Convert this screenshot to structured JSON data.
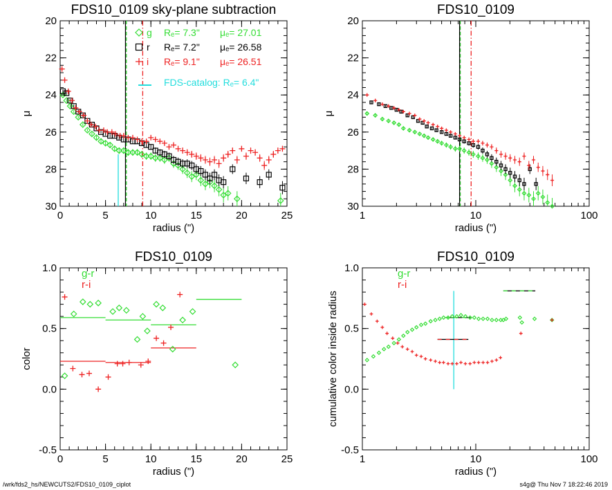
{
  "footer": {
    "left": "/wrk/fds2_hs/NEWCUTS2/FDS10_0109_ciplot",
    "right": "s4g@  Thu Nov  7 18:22:46 2019"
  },
  "colors": {
    "g": "#33dd33",
    "r": "#000000",
    "i": "#ee2222",
    "fds": "#22dddd"
  },
  "chart_data": [
    {
      "type": "scatter",
      "title": "FDS10_0109 sky-plane subtraction",
      "xlabel": "radius (\")",
      "ylabel": "μ",
      "xlim": [
        0,
        25
      ],
      "ylim": [
        30,
        20
      ],
      "xscale": "linear",
      "xticks": [
        "0",
        "5",
        "10",
        "15",
        "20",
        "25"
      ],
      "yticks": [
        "20",
        "22",
        "24",
        "26",
        "28",
        "30"
      ],
      "legend": [
        {
          "band": "g",
          "Re": "Rₑ=  7.3\"",
          "mu": "μₑ= 27.01",
          "color": "#33dd33",
          "marker": "diamond"
        },
        {
          "band": "r",
          "Re": "Rₑ=  7.2\"",
          "mu": "μₑ= 26.58",
          "color": "#000000",
          "marker": "square"
        },
        {
          "band": "i",
          "Re": "Rₑ=  9.1\"",
          "mu": "μₑ= 26.51",
          "color": "#ee2222",
          "marker": "plus"
        }
      ],
      "fds_catalog": {
        "label": "FDS-catalog: Rₑ=   6.4\"",
        "Re": 6.4,
        "color": "#22dddd"
      },
      "vlines": [
        {
          "x": 7.3,
          "color": "#33dd33",
          "style": "dashed"
        },
        {
          "x": 7.2,
          "color": "#000000",
          "style": "solid"
        },
        {
          "x": 9.1,
          "color": "#ee2222",
          "style": "dashdot"
        },
        {
          "x": 6.4,
          "color": "#22dddd",
          "style": "solid",
          "from": 30,
          "to": 27.2
        }
      ],
      "series": [
        {
          "name": "g",
          "color": "#33dd33",
          "marker": "diamond",
          "x": [
            0.3,
            0.7,
            1.1,
            1.5,
            2.0,
            2.5,
            3.0,
            3.5,
            4.0,
            4.5,
            5.0,
            5.5,
            6.0,
            6.5,
            7.0,
            7.5,
            8.0,
            8.5,
            9.0,
            9.5,
            10.0,
            10.5,
            11.0,
            11.5,
            12.0,
            12.5,
            13.0,
            13.5,
            14.0,
            14.5,
            15.0,
            15.5,
            16.0,
            16.5,
            17.0,
            17.5,
            18.0,
            18.5,
            19.5,
            24.3
          ],
          "y": [
            24.0,
            24.3,
            24.6,
            24.9,
            25.2,
            25.6,
            25.9,
            26.1,
            26.3,
            26.5,
            26.6,
            26.7,
            26.9,
            27.0,
            27.0,
            27.1,
            27.1,
            27.1,
            27.2,
            27.3,
            27.3,
            27.4,
            27.4,
            27.5,
            27.4,
            27.7,
            27.8,
            28.0,
            28.2,
            28.4,
            28.3,
            28.6,
            28.8,
            28.7,
            28.9,
            29.1,
            29.4,
            29.3,
            29.6,
            29.7
          ]
        },
        {
          "name": "r",
          "color": "#000000",
          "marker": "square",
          "x": [
            0.3,
            0.7,
            1.1,
            1.5,
            2.0,
            2.5,
            3.0,
            3.5,
            4.0,
            4.5,
            5.0,
            5.5,
            6.0,
            6.5,
            7.0,
            7.5,
            8.0,
            8.5,
            9.0,
            9.5,
            10.0,
            10.5,
            11.0,
            11.5,
            12.0,
            12.5,
            13.0,
            13.5,
            14.0,
            14.5,
            15.0,
            15.5,
            16.0,
            16.5,
            17.0,
            17.5,
            18.0,
            19.0,
            20.5,
            22.0,
            23.0,
            24.5
          ],
          "y": [
            23.8,
            23.9,
            24.3,
            24.6,
            24.9,
            25.1,
            25.4,
            25.6,
            25.8,
            26.0,
            26.1,
            26.2,
            26.2,
            26.3,
            26.4,
            26.4,
            26.5,
            26.5,
            26.6,
            26.7,
            26.8,
            27.0,
            27.1,
            27.2,
            27.3,
            27.5,
            27.6,
            27.7,
            27.7,
            27.8,
            28.0,
            28.1,
            28.3,
            28.5,
            28.3,
            28.6,
            28.7,
            28.0,
            28.5,
            28.7,
            28.3,
            29.0
          ]
        },
        {
          "name": "i",
          "color": "#ee2222",
          "marker": "plus",
          "x": [
            0.2,
            0.5,
            0.9,
            1.3,
            1.7,
            2.1,
            2.6,
            3.0,
            3.4,
            3.9,
            4.3,
            4.8,
            5.2,
            5.7,
            6.1,
            6.6,
            7.0,
            7.5,
            8.0,
            8.5,
            9.0,
            9.5,
            10.0,
            10.5,
            11.0,
            11.5,
            12.0,
            12.5,
            13.0,
            13.5,
            14.0,
            14.5,
            15.0,
            15.5,
            16.0,
            16.5,
            17.0,
            17.5,
            18.0,
            18.5,
            19.0,
            19.5,
            20.0,
            20.5,
            21.0,
            21.5,
            22.0,
            22.5,
            23.0,
            23.5,
            24.0,
            24.5
          ],
          "y": [
            22.6,
            23.2,
            23.8,
            24.3,
            24.7,
            24.9,
            25.1,
            25.4,
            25.6,
            25.7,
            25.9,
            25.9,
            26.0,
            26.0,
            26.1,
            26.2,
            26.2,
            26.3,
            26.3,
            26.4,
            26.5,
            26.5,
            26.3,
            26.4,
            26.5,
            26.6,
            26.8,
            26.7,
            26.9,
            27.0,
            27.1,
            27.2,
            27.3,
            27.4,
            27.5,
            27.6,
            27.5,
            27.7,
            27.4,
            27.2,
            27.0,
            27.5,
            26.9,
            27.3,
            27.0,
            27.1,
            27.4,
            27.8,
            27.5,
            27.2,
            27.0,
            26.9
          ]
        }
      ]
    },
    {
      "type": "scatter",
      "title": "FDS10_0109",
      "xlabel": "radius (\")",
      "ylabel": "μ",
      "xlim": [
        1,
        100
      ],
      "ylim": [
        30,
        20
      ],
      "xscale": "log",
      "xticks": [
        "1",
        "10",
        "100"
      ],
      "yticks": [
        "20",
        "22",
        "24",
        "26",
        "28",
        "30"
      ],
      "vlines": [
        {
          "x": 7.3,
          "color": "#33dd33",
          "style": "dashed"
        },
        {
          "x": 7.2,
          "color": "#000000",
          "style": "solid"
        },
        {
          "x": 9.1,
          "color": "#ee2222",
          "style": "dashdot"
        }
      ],
      "series": [
        {
          "name": "g",
          "color": "#33dd33",
          "marker": "diamond",
          "x": [
            1.1,
            1.3,
            1.5,
            1.7,
            1.9,
            2.1,
            2.3,
            2.6,
            2.9,
            3.2,
            3.5,
            3.8,
            4.2,
            4.6,
            5.0,
            5.5,
            6.0,
            6.6,
            7.2,
            7.9,
            8.7,
            9.5,
            10.5,
            11.5,
            12.6,
            13.8,
            15.2,
            16.7,
            18.3,
            20.1,
            22.1,
            24.3,
            26.7,
            29.4,
            32.3,
            35.5,
            39.0,
            42.9,
            47.2
          ],
          "y": [
            25.0,
            25.1,
            25.3,
            25.4,
            25.5,
            25.6,
            25.8,
            25.9,
            26.0,
            26.1,
            26.2,
            26.3,
            26.4,
            26.5,
            26.6,
            26.7,
            26.8,
            26.9,
            26.9,
            27.0,
            27.1,
            27.2,
            27.3,
            27.4,
            27.5,
            27.7,
            27.9,
            28.1,
            28.3,
            28.6,
            28.9,
            29.1,
            29.3,
            29.4,
            29.6,
            29.3,
            29.5,
            29.8,
            30.0
          ]
        },
        {
          "name": "r",
          "color": "#000000",
          "marker": "square",
          "x": [
            1.2,
            1.4,
            1.6,
            1.8,
            2.0,
            2.2,
            2.5,
            2.8,
            3.1,
            3.4,
            3.7,
            4.1,
            4.5,
            5.0,
            5.5,
            6.0,
            6.6,
            7.2,
            7.9,
            8.7,
            9.5,
            10.5,
            11.5,
            12.6,
            13.8,
            15.2,
            16.7,
            18.3,
            20.1,
            22.1,
            24.3,
            26.7,
            30.0,
            34.0
          ],
          "y": [
            24.4,
            24.5,
            24.6,
            24.7,
            24.8,
            24.9,
            25.1,
            25.2,
            25.4,
            25.5,
            25.7,
            25.8,
            25.9,
            26.0,
            26.1,
            26.2,
            26.3,
            26.4,
            26.5,
            26.6,
            26.7,
            26.8,
            27.0,
            27.2,
            27.4,
            27.6,
            27.8,
            28.0,
            28.2,
            28.4,
            28.6,
            28.8,
            28.0,
            28.8
          ]
        },
        {
          "name": "i",
          "color": "#ee2222",
          "marker": "plus",
          "x": [
            1.1,
            1.3,
            1.5,
            1.7,
            1.9,
            2.1,
            2.3,
            2.6,
            2.9,
            3.2,
            3.5,
            3.8,
            4.2,
            4.6,
            5.0,
            5.5,
            6.0,
            6.6,
            7.2,
            7.9,
            8.7,
            9.5,
            10.5,
            11.5,
            12.6,
            13.8,
            15.2,
            16.7,
            18.3,
            20.1,
            22.1,
            24.3,
            26.7,
            29.4,
            32.3,
            35.5,
            39.0,
            42.9,
            47.2
          ],
          "y": [
            24.0,
            24.3,
            24.5,
            24.6,
            24.7,
            24.8,
            24.9,
            25.0,
            25.1,
            25.3,
            25.4,
            25.5,
            25.6,
            25.7,
            25.8,
            25.9,
            26.0,
            26.1,
            26.2,
            26.3,
            26.4,
            26.5,
            26.5,
            26.6,
            26.7,
            26.8,
            27.0,
            27.2,
            27.3,
            27.4,
            27.5,
            27.6,
            27.3,
            27.8,
            27.5,
            27.9,
            28.1,
            28.3,
            28.6
          ]
        }
      ]
    },
    {
      "type": "scatter",
      "title": "FDS10_0109",
      "xlabel": "radius (\")",
      "ylabel": "color",
      "xlim": [
        0,
        25
      ],
      "ylim": [
        -0.5,
        1.0
      ],
      "xscale": "linear",
      "xticks": [
        "0",
        "5",
        "10",
        "15",
        "20",
        "25"
      ],
      "yticks": [
        "-0.5",
        "0.0",
        "0.5",
        "1.0"
      ],
      "legend": [
        {
          "label": "g-r",
          "color": "#33dd33"
        },
        {
          "label": "r-i",
          "color": "#ee2222"
        }
      ],
      "series": [
        {
          "name": "g-r",
          "color": "#33dd33",
          "marker": "diamond",
          "x": [
            0.5,
            1.5,
            2.5,
            3.3,
            4.2,
            5.8,
            6.5,
            7.3,
            8.5,
            9.1,
            9.6,
            10.6,
            11.3,
            12.4,
            13.5,
            14.6,
            19.3
          ],
          "y": [
            0.11,
            0.62,
            0.72,
            0.7,
            0.71,
            0.64,
            0.67,
            0.65,
            0.41,
            0.6,
            0.48,
            0.7,
            0.67,
            0.33,
            0.57,
            0.64,
            0.2
          ]
        },
        {
          "name": "r-i",
          "color": "#ee2222",
          "marker": "plus",
          "x": [
            0.5,
            1.4,
            2.4,
            3.2,
            4.2,
            5.3,
            6.3,
            6.9,
            7.6,
            8.9,
            9.7,
            10.6,
            11.4,
            12.2,
            13.2
          ],
          "y": [
            0.76,
            0.17,
            0.12,
            0.13,
            0.0,
            0.1,
            0.21,
            0.21,
            0.22,
            0.2,
            0.23,
            0.42,
            0.38,
            0.51,
            0.78
          ]
        }
      ],
      "segments": [
        {
          "color": "#33dd33",
          "x": [
            0,
            5
          ],
          "y": 0.59
        },
        {
          "color": "#33dd33",
          "x": [
            5,
            10
          ],
          "y": 0.57
        },
        {
          "color": "#33dd33",
          "x": [
            10,
            15
          ],
          "y": 0.53
        },
        {
          "color": "#33dd33",
          "x": [
            15,
            20
          ],
          "y": 0.74
        },
        {
          "color": "#ee2222",
          "x": [
            0,
            5
          ],
          "y": 0.23
        },
        {
          "color": "#ee2222",
          "x": [
            5,
            10
          ],
          "y": 0.22
        },
        {
          "color": "#ee2222",
          "x": [
            10,
            15
          ],
          "y": 0.34
        }
      ]
    },
    {
      "type": "scatter",
      "title": "FDS10_0109",
      "xlabel": "radius (\")",
      "ylabel": "cumulative color inside radius",
      "xlim": [
        1,
        100
      ],
      "ylim": [
        -0.5,
        1.0
      ],
      "xscale": "log",
      "xticks": [
        "1",
        "10",
        "100"
      ],
      "yticks": [
        "-0.5",
        "0.0",
        "0.5",
        "1.0"
      ],
      "legend": [
        {
          "label": "g-r",
          "color": "#33dd33"
        },
        {
          "label": "r-i",
          "color": "#ee2222"
        }
      ],
      "vlines": [
        {
          "x": 6.4,
          "color": "#22dddd",
          "style": "solid",
          "from": 0.0,
          "to": 0.81
        }
      ],
      "series": [
        {
          "name": "g-r",
          "color": "#33dd33",
          "marker": "diamond",
          "x": [
            1.1,
            1.25,
            1.4,
            1.55,
            1.7,
            1.9,
            2.1,
            2.3,
            2.5,
            2.75,
            3.0,
            3.3,
            3.6,
            4.0,
            4.4,
            4.8,
            5.2,
            5.7,
            6.2,
            6.8,
            7.4,
            8.1,
            8.9,
            9.7,
            10.6,
            11.6,
            12.7,
            13.9,
            15.2,
            16.6,
            17.5,
            18.5,
            24.5,
            25.5,
            33.0,
            47.0
          ],
          "y": [
            0.24,
            0.27,
            0.3,
            0.33,
            0.35,
            0.38,
            0.41,
            0.44,
            0.47,
            0.49,
            0.51,
            0.53,
            0.54,
            0.56,
            0.57,
            0.58,
            0.59,
            0.59,
            0.6,
            0.6,
            0.61,
            0.6,
            0.59,
            0.59,
            0.58,
            0.58,
            0.58,
            0.57,
            0.57,
            0.57,
            0.57,
            0.58,
            0.59,
            0.55,
            0.58,
            0.57
          ]
        },
        {
          "name": "r-i",
          "color": "#ee2222",
          "marker": "plus",
          "x": [
            1.05,
            1.2,
            1.35,
            1.5,
            1.65,
            1.85,
            2.05,
            2.25,
            2.5,
            2.75,
            3.0,
            3.3,
            3.6,
            4.0,
            4.4,
            4.8,
            5.2,
            5.7,
            6.2,
            6.8,
            7.4,
            8.1,
            8.9,
            9.7,
            10.6,
            11.6,
            12.7,
            13.9,
            15.2,
            16.5,
            25.0,
            47.0
          ],
          "y": [
            0.7,
            0.62,
            0.56,
            0.51,
            0.46,
            0.42,
            0.38,
            0.35,
            0.33,
            0.31,
            0.28,
            0.27,
            0.25,
            0.24,
            0.23,
            0.22,
            0.22,
            0.21,
            0.21,
            0.21,
            0.22,
            0.21,
            0.21,
            0.22,
            0.22,
            0.22,
            0.22,
            0.23,
            0.24,
            0.26,
            0.46,
            0.57
          ]
        }
      ],
      "segments": [
        {
          "color": "#000000",
          "dashed_color": "#33dd33",
          "x": [
            5.4,
            9.2
          ],
          "y": 0.59
        },
        {
          "color": "#000000",
          "dashed_color": "#ee2222",
          "x": [
            4.6,
            8.6
          ],
          "y": 0.41
        },
        {
          "color": "#000000",
          "dashed_color": "#33dd33",
          "x": [
            17.5,
            33.5
          ],
          "y": 0.81
        }
      ]
    }
  ]
}
